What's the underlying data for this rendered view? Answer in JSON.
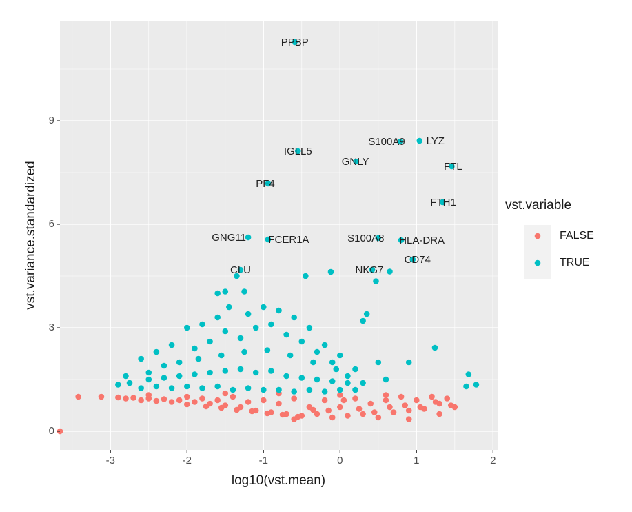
{
  "chart_data": {
    "type": "scatter",
    "x_label": "log10(vst.mean)",
    "y_label": "vst.variance.standardized",
    "legend_title": "vst.variable",
    "legend_position": "right",
    "grid": true,
    "xlim": [
      -3.66,
      2.06
    ],
    "ylim": [
      -0.54,
      11.9
    ],
    "xticks": [
      -3,
      -2,
      -1,
      0,
      1,
      2
    ],
    "yticks": [
      0,
      3,
      6,
      9
    ],
    "x_minor_ticks": [
      -3.5,
      -2.5,
      -1.5,
      -0.5,
      0.5,
      1.5
    ],
    "y_minor_ticks": [
      1.5,
      4.5,
      7.5,
      10.5
    ],
    "series": [
      {
        "name": "FALSE",
        "color": "#F8766D",
        "x": [
          -3.66,
          -3.42,
          -3.12,
          -2.9,
          -2.8,
          -2.7,
          -2.6,
          -2.5,
          -2.4,
          -2.3,
          -2.2,
          -2.1,
          -2.0,
          -2.0,
          -1.9,
          -1.8,
          -1.75,
          -1.7,
          -1.6,
          -1.55,
          -1.5,
          -1.4,
          -1.35,
          -1.3,
          -1.2,
          -1.15,
          -1.1,
          -1.0,
          -0.95,
          -0.9,
          -0.8,
          -0.75,
          -0.7,
          -0.6,
          -0.55,
          -0.5,
          -0.4,
          -0.35,
          -0.3,
          -0.2,
          -0.15,
          -0.1,
          0.0,
          0.05,
          0.1,
          0.2,
          0.25,
          0.3,
          0.4,
          0.45,
          0.5,
          0.6,
          0.65,
          0.7,
          0.8,
          0.85,
          0.9,
          1.0,
          1.05,
          1.1,
          1.2,
          1.25,
          1.3,
          1.4,
          1.45,
          1.5,
          1.3,
          0.9,
          -0.6,
          -1.5,
          -2.5,
          -0.8,
          0.0,
          0.6
        ],
        "y": [
          0.0,
          1.0,
          1.0,
          0.98,
          0.95,
          0.97,
          0.9,
          0.95,
          0.88,
          0.93,
          0.85,
          0.9,
          1.0,
          0.78,
          0.85,
          0.95,
          0.72,
          0.8,
          0.9,
          0.68,
          0.75,
          1.0,
          0.62,
          0.7,
          0.85,
          0.58,
          0.6,
          0.9,
          0.52,
          0.55,
          0.8,
          0.48,
          0.5,
          0.95,
          0.42,
          0.45,
          0.7,
          0.62,
          0.5,
          0.9,
          0.6,
          0.4,
          0.7,
          0.9,
          0.45,
          0.95,
          0.65,
          0.5,
          0.8,
          0.55,
          0.4,
          0.9,
          0.7,
          0.55,
          1.0,
          0.75,
          0.6,
          0.9,
          0.7,
          0.65,
          1.0,
          0.85,
          0.8,
          0.95,
          0.75,
          0.7,
          0.5,
          0.35,
          0.35,
          1.1,
          1.05,
          1.1,
          1.05,
          1.05
        ]
      },
      {
        "name": "TRUE",
        "color": "#00BFC4",
        "x": [
          -0.59,
          0.79,
          1.04,
          -0.55,
          0.21,
          1.46,
          -0.94,
          1.34,
          -1.2,
          -0.94,
          0.5,
          0.8,
          0.95,
          -1.3,
          0.42,
          -1.35,
          -1.5,
          -1.6,
          -1.25,
          -0.45,
          -0.12,
          0.47,
          0.65,
          0.35,
          0.3,
          1.24,
          1.68,
          1.78,
          1.65,
          0.9,
          0.5,
          0.6,
          -2.9,
          -2.75,
          -2.6,
          -2.4,
          -2.2,
          -2.0,
          -1.8,
          -1.6,
          -1.45,
          -1.2,
          -1.0,
          -0.8,
          -0.6,
          -0.4,
          -0.2,
          0.0,
          0.2,
          -2.8,
          -2.5,
          -2.3,
          -2.1,
          -1.9,
          -1.7,
          -1.5,
          -1.3,
          -1.1,
          -0.9,
          -0.7,
          -0.5,
          -0.3,
          -0.1,
          0.1,
          0.3,
          -2.6,
          -2.4,
          -2.2,
          -2.0,
          -1.8,
          -1.6,
          -1.4,
          -1.2,
          -1.0,
          -0.8,
          -0.6,
          -0.4,
          -0.2,
          0.0,
          0.2,
          -2.5,
          -2.3,
          -2.1,
          -1.9,
          -1.7,
          -1.5,
          -1.3,
          -1.1,
          -0.9,
          -0.7,
          -0.5,
          -0.3,
          -0.1,
          0.1,
          -1.85,
          -1.55,
          -1.25,
          -0.95,
          -0.65,
          -0.35,
          -0.05
        ],
        "y": [
          11.28,
          8.4,
          8.42,
          8.12,
          7.82,
          7.68,
          7.18,
          6.64,
          5.62,
          5.56,
          5.6,
          5.54,
          4.98,
          4.68,
          4.68,
          4.5,
          4.05,
          4.0,
          4.05,
          4.5,
          4.62,
          4.35,
          4.63,
          3.4,
          3.2,
          2.42,
          1.65,
          1.35,
          1.3,
          2.0,
          2.0,
          1.5,
          1.35,
          1.4,
          2.1,
          2.3,
          2.5,
          3.0,
          3.1,
          3.3,
          3.6,
          3.4,
          3.6,
          3.5,
          3.3,
          3.0,
          2.5,
          2.2,
          1.8,
          1.6,
          1.7,
          1.9,
          2.0,
          2.4,
          2.6,
          2.9,
          2.7,
          3.0,
          3.1,
          2.8,
          2.6,
          2.3,
          2.0,
          1.6,
          1.4,
          1.25,
          1.3,
          1.25,
          1.3,
          1.25,
          1.3,
          1.2,
          1.25,
          1.2,
          1.2,
          1.15,
          1.2,
          1.15,
          1.2,
          1.2,
          1.5,
          1.55,
          1.6,
          1.65,
          1.7,
          1.75,
          1.8,
          1.7,
          1.75,
          1.6,
          1.55,
          1.5,
          1.45,
          1.4,
          2.1,
          2.2,
          2.3,
          2.35,
          2.2,
          2.0,
          1.8
        ]
      }
    ],
    "annotations": [
      {
        "text": "PPBP",
        "series": 1,
        "index": 0
      },
      {
        "text": "S100A9",
        "series": 1,
        "index": 1
      },
      {
        "text": "LYZ",
        "series": 1,
        "index": 2
      },
      {
        "text": "IGLL5",
        "series": 1,
        "index": 3
      },
      {
        "text": "GNLY",
        "series": 1,
        "index": 4
      },
      {
        "text": "FTL",
        "series": 1,
        "index": 5
      },
      {
        "text": "PF4",
        "series": 1,
        "index": 6
      },
      {
        "text": "FTH1",
        "series": 1,
        "index": 7
      },
      {
        "text": "GNG11",
        "series": 1,
        "index": 8
      },
      {
        "text": "FCER1A",
        "series": 1,
        "index": 9
      },
      {
        "text": "S100A8",
        "series": 1,
        "index": 10
      },
      {
        "text": "HLA-DRA",
        "series": 1,
        "index": 11
      },
      {
        "text": "CD74",
        "series": 1,
        "index": 12
      },
      {
        "text": "CLU",
        "series": 1,
        "index": 13
      },
      {
        "text": "NKG7",
        "series": 1,
        "index": 14
      }
    ]
  }
}
